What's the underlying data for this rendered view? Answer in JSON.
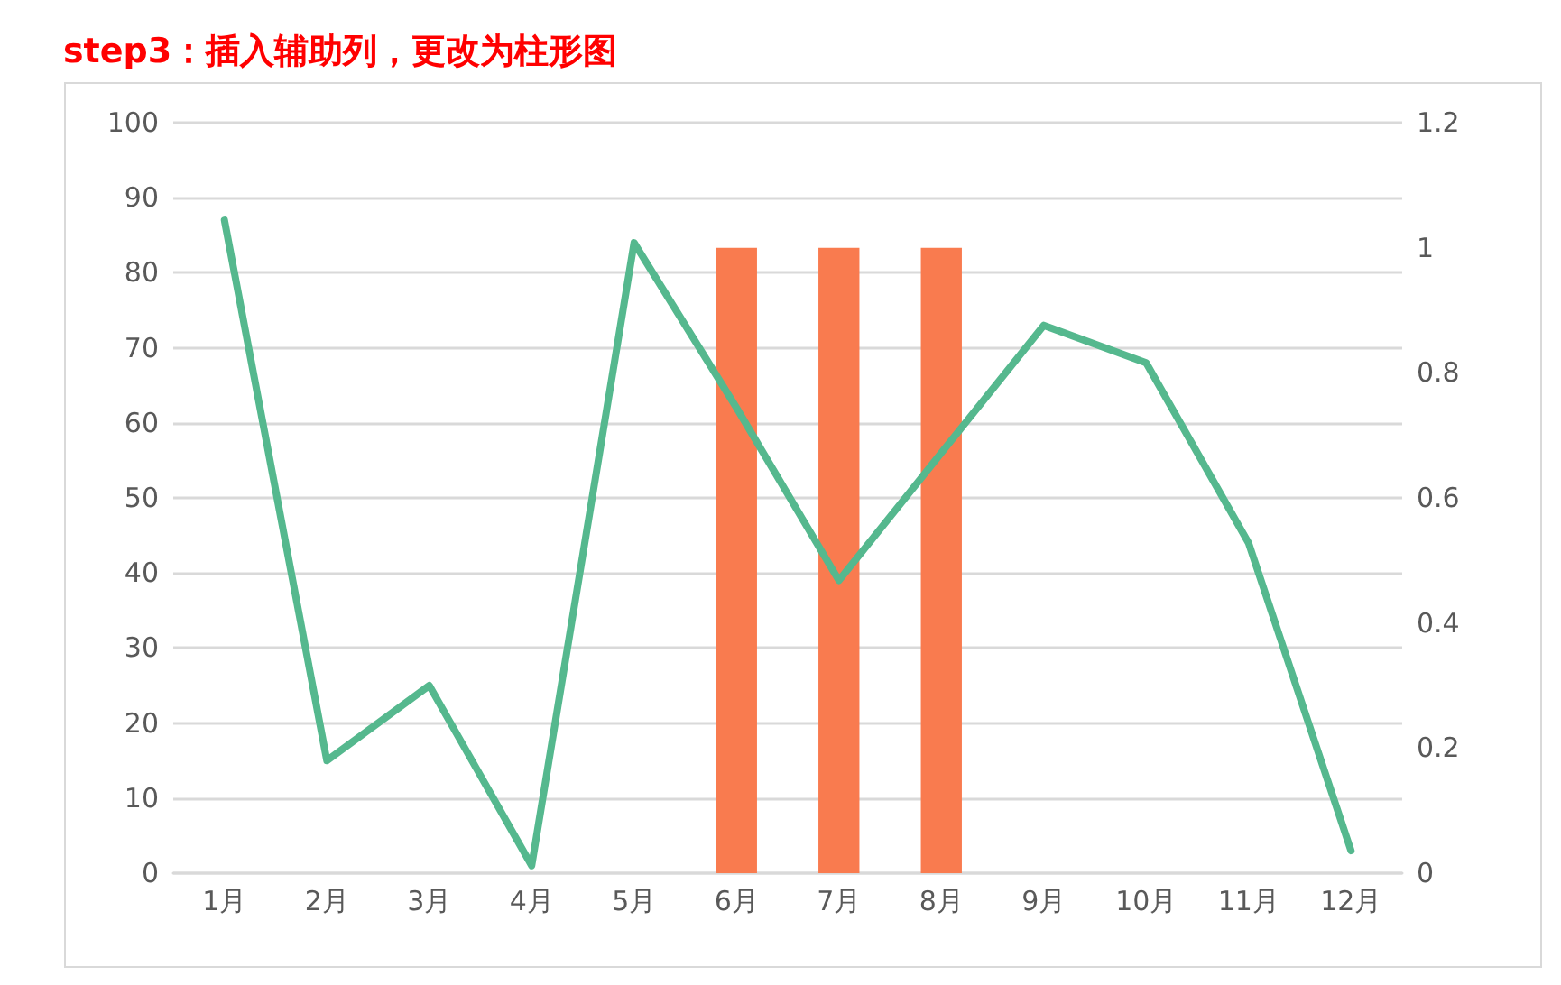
{
  "chart_data": {
    "type": "line",
    "title": "step3：插入辅助列，更改为柱形图",
    "categories": [
      "1月",
      "2月",
      "3月",
      "4月",
      "5月",
      "6月",
      "7月",
      "8月",
      "9月",
      "10月",
      "11月",
      "12月"
    ],
    "series": [
      {
        "color": "#55b88e",
        "values": [
          87,
          15,
          25,
          1,
          84,
          62,
          39,
          56,
          73,
          68,
          44,
          3
        ]
      },
      {
        "type": "bar",
        "axis": "y2",
        "color": "#f97b4f",
        "values": [
          null,
          null,
          null,
          null,
          null,
          1,
          1,
          1,
          null,
          null,
          null,
          null
        ]
      }
    ],
    "ylim": [
      0,
      100
    ],
    "yticks": [
      0,
      10,
      20,
      30,
      40,
      50,
      60,
      70,
      80,
      90,
      100
    ],
    "y2lim": [
      0,
      1.2
    ],
    "y2ticks": [
      0,
      0.2,
      0.4,
      0.6,
      0.8,
      1,
      1.2
    ],
    "grid": "y",
    "marker": "none",
    "line_style": "solid"
  }
}
